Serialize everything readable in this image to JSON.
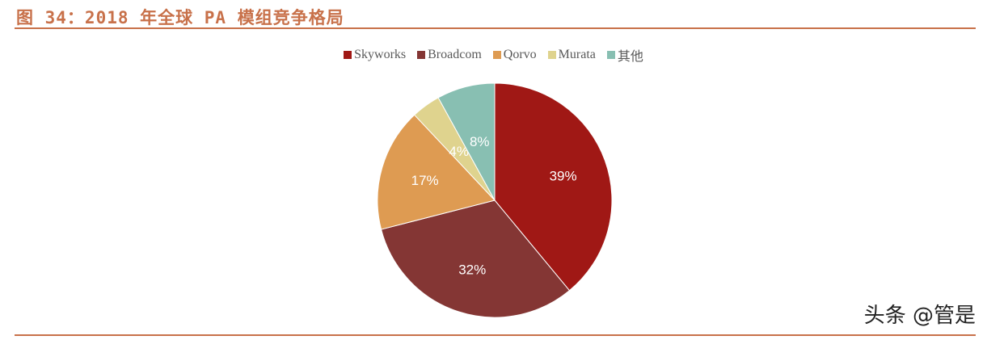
{
  "title": "图 34：2018 年全球 PA 模组竞争格局",
  "watermark": "头条 @管是",
  "chart_data": {
    "type": "pie",
    "title": "",
    "legend_position": "top",
    "categories": [
      "Skyworks",
      "Broadcom",
      "Qorvo",
      "Murata",
      "其他"
    ],
    "values": [
      39,
      32,
      17,
      4,
      8
    ],
    "labels": [
      "39%",
      "32%",
      "17%",
      "4%",
      "8%"
    ],
    "colors": [
      "#A01815",
      "#843634",
      "#DE9B52",
      "#DFD38E",
      "#88BFB2"
    ]
  }
}
